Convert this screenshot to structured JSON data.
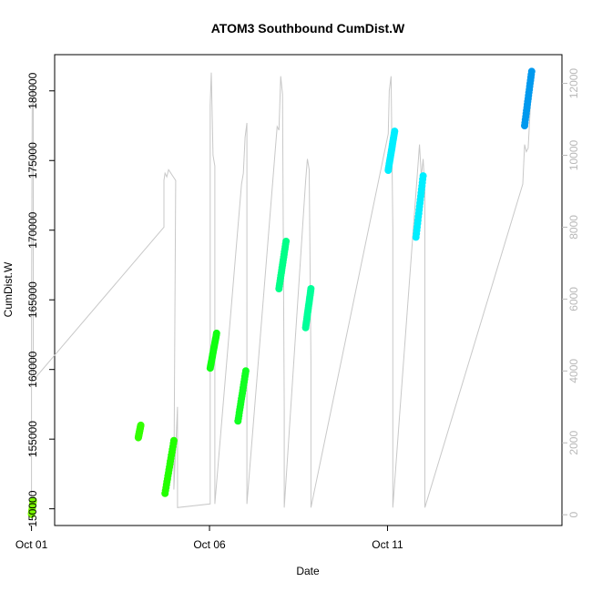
{
  "chart_data": {
    "type": "scatter",
    "title": "ATOM3 Southbound CumDist.W",
    "xlabel": "Date",
    "ylabel": "CumDist.W",
    "x_ticks": [
      "Oct 01",
      "Oct 06",
      "Oct 11"
    ],
    "y_ticks": [
      "150000",
      "155000",
      "160000",
      "165000",
      "170000",
      "175000",
      "180000"
    ],
    "y2_ticks": [
      "0",
      "2000",
      "4000",
      "6000",
      "8000",
      "10000",
      "12000"
    ],
    "xlim_days": [
      0.65,
      14.9
    ],
    "ylim": [
      148800,
      182600
    ],
    "y2lim": [
      -300,
      12800
    ],
    "grid": false,
    "point_series": [
      {
        "color": "#7CFC00",
        "x": [
          0.0,
          0.05
        ],
        "y": [
          149600,
          150600
        ]
      },
      {
        "color": "#33FF00",
        "x": [
          3.0,
          3.07
        ],
        "y": [
          155100,
          156000
        ]
      },
      {
        "color": "#22FF00",
        "x": [
          3.75,
          4.0
        ],
        "y": [
          151100,
          154900
        ]
      },
      {
        "color": "#11FF11",
        "x": [
          5.02,
          5.2
        ],
        "y": [
          160100,
          162600
        ]
      },
      {
        "color": "#11FF22",
        "x": [
          5.8,
          6.02
        ],
        "y": [
          156300,
          159900
        ]
      },
      {
        "color": "#00FF88",
        "x": [
          6.95,
          7.15
        ],
        "y": [
          165800,
          169200
        ]
      },
      {
        "color": "#00FF99",
        "x": [
          7.7,
          7.85
        ],
        "y": [
          163000,
          165800
        ]
      },
      {
        "color": "#00EEFF",
        "x": [
          10.02,
          10.2
        ],
        "y": [
          174300,
          177100
        ]
      },
      {
        "color": "#00EEFF",
        "x": [
          10.8,
          11.0
        ],
        "y": [
          169500,
          173900
        ]
      },
      {
        "color": "#0099EE",
        "x": [
          13.85,
          14.05
        ],
        "y": [
          177500,
          181400
        ]
      }
    ],
    "trace_color": "#c8c8c8",
    "trace": {
      "x": [
        0.0,
        0.0,
        0.02,
        0.05,
        0.05,
        0.1,
        3.72,
        3.72,
        3.75,
        3.8,
        3.85,
        4.05,
        4.0,
        4.1,
        4.1,
        5.02,
        5.02,
        5.05,
        5.1,
        5.15,
        5.15,
        5.9,
        5.95,
        6.0,
        6.05,
        6.05,
        6.9,
        6.95,
        7.0,
        7.05,
        7.1,
        7.1,
        7.7,
        7.75,
        7.8,
        7.85,
        7.85,
        10.02,
        10.05,
        10.1,
        10.15,
        10.15,
        10.9,
        10.95,
        11.0,
        11.05,
        11.05,
        13.8,
        13.85,
        13.9,
        13.95,
        14.0,
        14.05
      ],
      "y2": [
        500,
        5500,
        11800,
        12000,
        3900,
        3800,
        8000,
        9300,
        9500,
        9400,
        9600,
        9300,
        700,
        3000,
        200,
        300,
        11400,
        12300,
        10000,
        9700,
        300,
        9200,
        9500,
        10500,
        10900,
        300,
        10800,
        10700,
        12200,
        11700,
        2900,
        200,
        9300,
        9900,
        9600,
        4200,
        200,
        10600,
        11800,
        12200,
        8000,
        200,
        10300,
        9400,
        9900,
        9000,
        200,
        9200,
        10300,
        10100,
        10200,
        11100,
        12300
      ]
    }
  }
}
